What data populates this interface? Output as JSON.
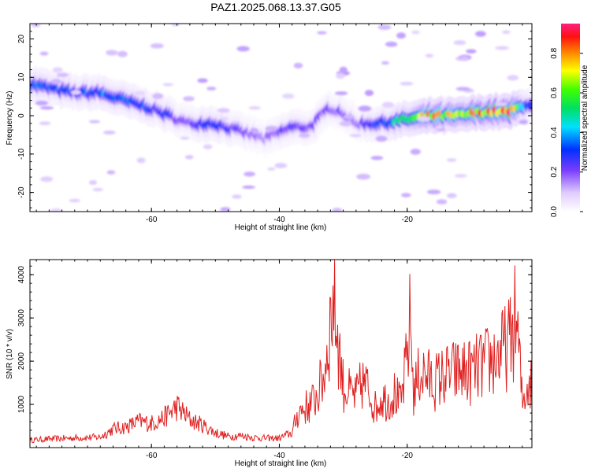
{
  "title": "PAZ1.2025.068.13.37.G05",
  "chart_data": [
    {
      "type": "heatmap",
      "xlabel": "Height of straight line (km)",
      "ylabel": "Frequency (Hz)",
      "xlim": [
        -79,
        -0.5
      ],
      "ylim": [
        -25,
        24
      ],
      "xticks": [
        -60,
        -40,
        -20
      ],
      "yticks": [
        -20,
        -10,
        0,
        10,
        20
      ],
      "colorbar": {
        "label": "Normalized spectral amplitude",
        "range": [
          0,
          0.95
        ],
        "ticks": [
          0.0,
          0.2,
          0.4,
          0.6,
          0.8
        ]
      },
      "ridge": {
        "x": [
          -78,
          -72,
          -68,
          -64,
          -60,
          -57,
          -54,
          -50,
          -46,
          -42,
          -38,
          -35,
          -32,
          -30,
          -28,
          -24,
          -20,
          -16,
          -12,
          -8,
          -4,
          -1
        ],
        "frequency": [
          8,
          6,
          6,
          4,
          2,
          0,
          -2,
          -2,
          -4,
          -6,
          -3,
          -3,
          2,
          1,
          -2,
          -2,
          -1,
          0,
          0,
          1,
          1,
          3
        ],
        "amplitude": [
          0.35,
          0.3,
          0.35,
          0.35,
          0.3,
          0.25,
          0.2,
          0.3,
          0.2,
          0.15,
          0.25,
          0.2,
          0.2,
          0.2,
          0.15,
          0.35,
          0.5,
          0.75,
          0.7,
          0.8,
          0.9,
          0.3
        ]
      }
    },
    {
      "type": "line",
      "xlabel": "Height of straight line (km)",
      "ylabel": "SNR (10 * v/v)",
      "xlim": [
        -79,
        -0.5
      ],
      "ylim": [
        0,
        4350
      ],
      "xticks": [
        -60,
        -40,
        -20
      ],
      "yticks": [
        1000,
        2000,
        3000,
        4000
      ],
      "color": "#e02020",
      "envelope": {
        "x": [
          -79,
          -76,
          -72,
          -68,
          -66,
          -64,
          -62,
          -60,
          -58,
          -56,
          -54,
          -52,
          -50,
          -48,
          -46,
          -44,
          -42,
          -40,
          -38,
          -37,
          -36,
          -35,
          -34,
          -33,
          -32,
          -31.5,
          -31,
          -30,
          -29,
          -28,
          -27,
          -26,
          -25,
          -24,
          -23,
          -22,
          -21,
          -20,
          -19.5,
          -19,
          -18,
          -17,
          -16,
          -14,
          -12,
          -10,
          -8,
          -6,
          -4,
          -3,
          -2.5,
          -2,
          -1,
          -0.5
        ],
        "y": [
          200,
          230,
          260,
          280,
          500,
          550,
          700,
          650,
          800,
          1100,
          750,
          600,
          400,
          300,
          320,
          270,
          250,
          250,
          400,
          1000,
          1100,
          1200,
          1500,
          2000,
          3500,
          4200,
          3300,
          1700,
          1500,
          1400,
          1800,
          1600,
          1100,
          1400,
          1300,
          1500,
          1200,
          2500,
          3600,
          1500,
          2100,
          2000,
          1800,
          2000,
          2100,
          2100,
          2300,
          2500,
          2900,
          3600,
          2600,
          1200,
          1900,
          1700
        ]
      }
    }
  ]
}
